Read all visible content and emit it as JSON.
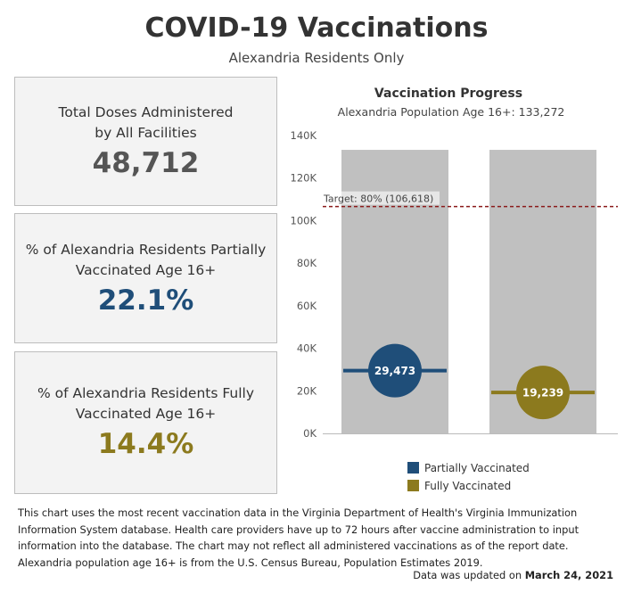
{
  "header": {
    "title": "COVID-19 Vaccinations",
    "subtitle": "Alexandria Residents Only"
  },
  "cards": [
    {
      "label_line1": "Total Doses Administered",
      "label_line2": "by All Facilities",
      "value": "48,712",
      "color": "#555555"
    },
    {
      "label_line1": "% of Alexandria Residents Partially",
      "label_line2": "Vaccinated Age 16+",
      "value": "22.1%",
      "color": "#1f4e79"
    },
    {
      "label_line1": "% of Alexandria Residents Fully",
      "label_line2": "Vaccinated Age 16+",
      "value": "14.4%",
      "color": "#8c7a1e"
    }
  ],
  "chart_data": {
    "type": "bar",
    "title": "Vaccination Progress",
    "subtitle": "Alexandria Population Age 16+: 133,272",
    "ylim": [
      0,
      140000
    ],
    "yticks": [
      0,
      20000,
      40000,
      60000,
      80000,
      100000,
      120000,
      140000
    ],
    "ytick_labels": [
      "0K",
      "20K",
      "40K",
      "60K",
      "80K",
      "100K",
      "120K",
      "140K"
    ],
    "population": 133272,
    "target": {
      "value": 106618,
      "label": "Target: 80% (106,618)",
      "color": "#8b1a1a"
    },
    "series": [
      {
        "name": "Partially Vaccinated",
        "value": 29473,
        "value_label": "29,473",
        "color": "#1f4e79"
      },
      {
        "name": "Fully Vaccinated",
        "value": 19239,
        "value_label": "19,239",
        "color": "#8c7a1e"
      }
    ],
    "bar_color": "#c0c0c0",
    "legend": "bottom"
  },
  "footer": {
    "note_lines": [
      "This chart uses the most recent vaccination data in the Virginia Department of Health's Virginia Immunization",
      "Information System database. Health care providers have up to 72 hours after vaccine administration to input",
      "information into the database. The chart may not reflect all administered vaccinations as of the report date.",
      "Alexandria population age 16+ is from the U.S. Census Bureau, Population Estimates 2019."
    ],
    "updated_prefix": "Data was updated on",
    "updated_date": "March 24, 2021"
  }
}
